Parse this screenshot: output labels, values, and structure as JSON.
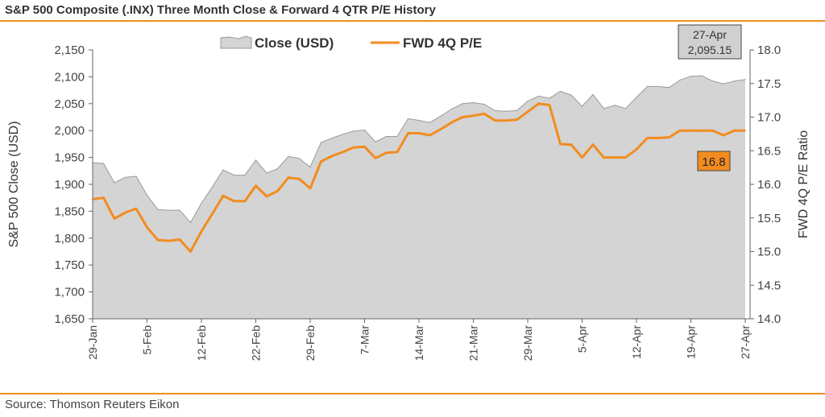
{
  "header": {
    "title": "S&P 500 Composite (.INX) Three Month Close & Forward 4 QTR P/E History"
  },
  "footer": {
    "source": "Source: Thomson Reuters Eikon"
  },
  "colors": {
    "accent": "#f28c1e",
    "area_fill": "#d4d4d4",
    "area_stroke": "#9a9a9a",
    "axis": "#666666"
  },
  "chart_data": {
    "type": "area",
    "title": "S&P 500 Composite (.INX) Three Month Close & Forward 4 QTR P/E History",
    "xlabel": "",
    "ylabel": "S&P 500 Close (USD)",
    "y2label": "FWD 4Q P/E Ratio",
    "ylim": [
      1650,
      2150
    ],
    "y2lim": [
      14.0,
      18.0
    ],
    "yticks": [
      "1,650",
      "1,700",
      "1,750",
      "1,800",
      "1,850",
      "1,900",
      "1,950",
      "2,000",
      "2,050",
      "2,100",
      "2,150"
    ],
    "y2ticks": [
      "14.0",
      "14.5",
      "15.0",
      "15.5",
      "16.0",
      "16.5",
      "17.0",
      "17.5",
      "18.0"
    ],
    "xticks": [
      "29-Jan",
      "5-Feb",
      "12-Feb",
      "22-Feb",
      "29-Feb",
      "7-Mar",
      "14-Mar",
      "21-Mar",
      "29-Mar",
      "5-Apr",
      "12-Apr",
      "19-Apr",
      "27-Apr"
    ],
    "legend": {
      "placement": "top",
      "entries": [
        "Close (USD)",
        "FWD 4Q P/E"
      ]
    },
    "grid": false,
    "series": [
      {
        "name": "Close (USD)",
        "kind": "area",
        "axis": "left",
        "values": [
          1940,
          1939,
          1903,
          1913,
          1915,
          1880,
          1853,
          1852,
          1852,
          1829,
          1865,
          1895,
          1927,
          1917,
          1917,
          1945,
          1921,
          1929,
          1952,
          1948,
          1932,
          1978,
          1986,
          1993,
          1999,
          2001,
          1979,
          1989,
          1989,
          2022,
          2019,
          2015,
          2027,
          2040,
          2050,
          2052,
          2049,
          2037,
          2036,
          2037,
          2055,
          2064,
          2060,
          2073,
          2066,
          2045,
          2067,
          2041,
          2047,
          2041,
          2062,
          2082,
          2082,
          2080,
          2094,
          2101,
          2102,
          2092,
          2087,
          2092,
          2095
        ]
      },
      {
        "name": "FWD 4Q P/E",
        "kind": "line",
        "axis": "right",
        "values": [
          15.78,
          15.8,
          15.49,
          15.58,
          15.64,
          15.36,
          15.17,
          15.16,
          15.18,
          15.0,
          15.3,
          15.56,
          15.83,
          15.75,
          15.75,
          15.98,
          15.82,
          15.9,
          16.1,
          16.08,
          15.94,
          16.34,
          16.42,
          16.48,
          16.55,
          16.56,
          16.39,
          16.47,
          16.48,
          16.76,
          16.76,
          16.73,
          16.82,
          16.92,
          17.0,
          17.02,
          17.05,
          16.95,
          16.95,
          16.96,
          17.08,
          17.2,
          17.18,
          16.6,
          16.59,
          16.4,
          16.59,
          16.4,
          16.4,
          16.4,
          16.52,
          16.69,
          16.69,
          16.7,
          16.8,
          16.8,
          16.8,
          16.8,
          16.73,
          16.8,
          16.8
        ]
      }
    ],
    "annotations": [
      {
        "kind": "box",
        "lines": [
          "27-Apr",
          "2,095.15"
        ]
      },
      {
        "kind": "box",
        "lines": [
          "16.8"
        ],
        "color": "#f28c1e"
      }
    ]
  }
}
